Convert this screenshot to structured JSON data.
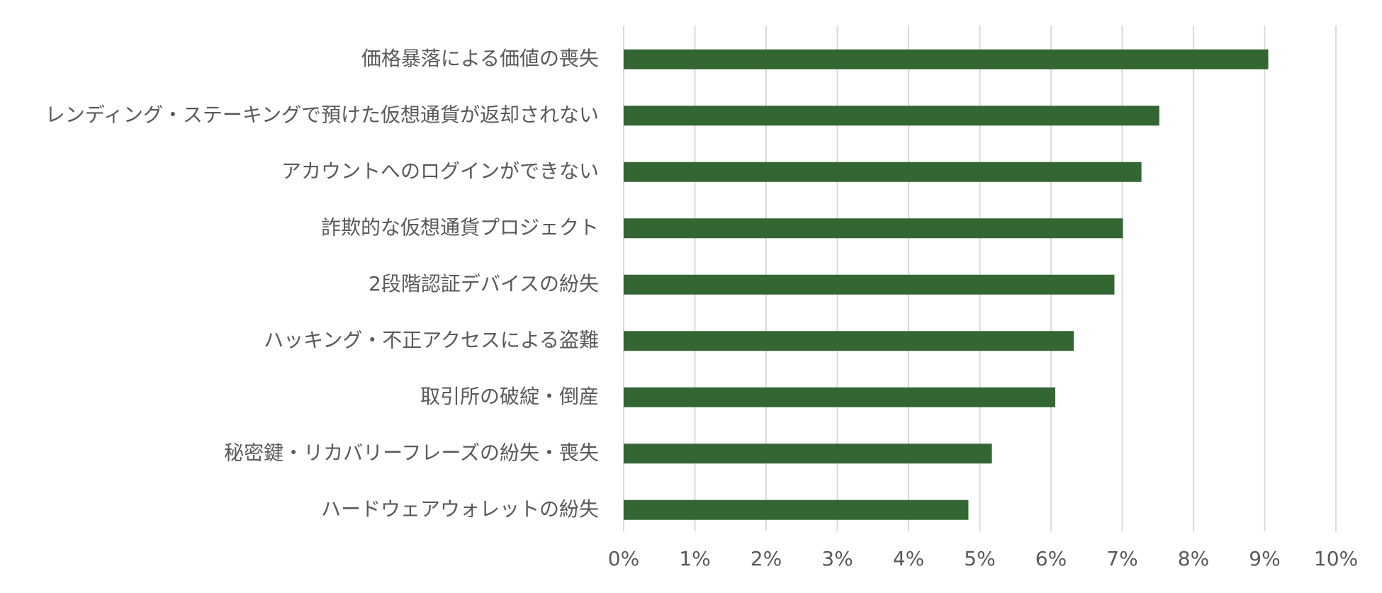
{
  "chart_data": {
    "type": "bar",
    "orientation": "horizontal",
    "categories": [
      "価格暴落による価値の喪失",
      "レンディング・ステーキングで預けた仮想通貨が返却されない",
      "アカウントへのログインができない",
      "詐欺的な仮想通貨プロジェクト",
      "2段階認証デバイスの紛失",
      "ハッキング・不正アクセスによる盗難",
      "取引所の破綻・倒産",
      "秘密鍵・リカバリーフレーズの紛失・喪失",
      "ハードウェアウォレットの紛失"
    ],
    "values": [
      9.05,
      7.52,
      7.27,
      7.01,
      6.89,
      6.32,
      6.06,
      5.17,
      4.84
    ],
    "xlim": [
      0,
      10
    ],
    "xticks": [
      0,
      1,
      2,
      3,
      4,
      5,
      6,
      7,
      8,
      9,
      10
    ],
    "tick_labels": [
      "0%",
      "1%",
      "2%",
      "3%",
      "4%",
      "5%",
      "6%",
      "7%",
      "8%",
      "9%",
      "10%"
    ],
    "bar_color": "#336633",
    "grid": true
  }
}
